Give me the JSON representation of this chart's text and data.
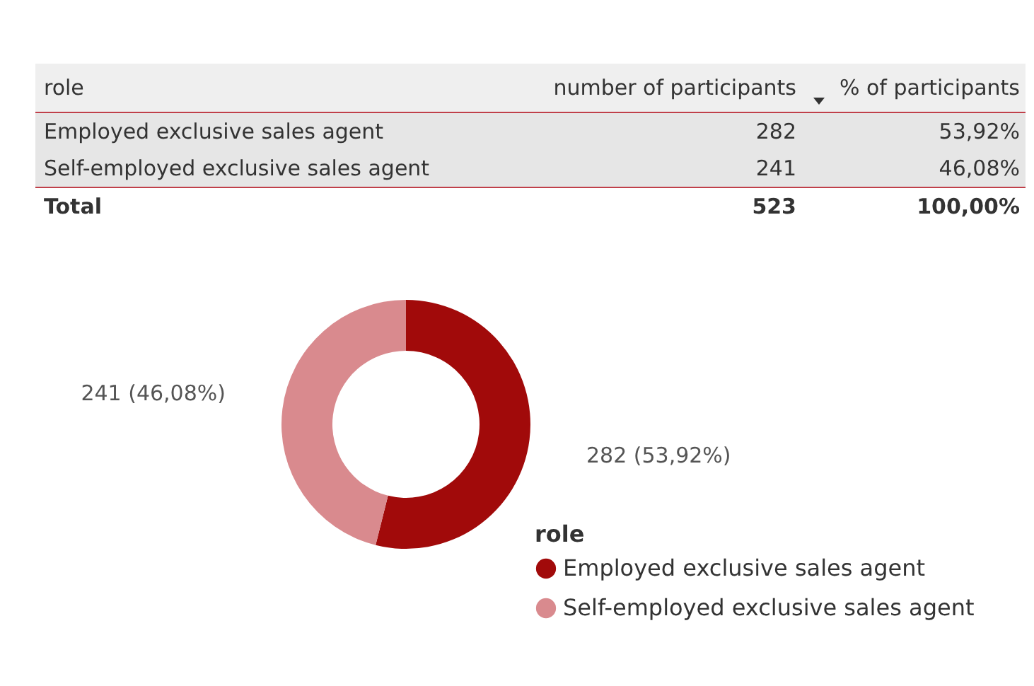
{
  "chart_data": [
    {
      "type": "other",
      "annotations": [
        "role",
        "number of participants",
        "% of participants",
        "Employed exclusive sales agent",
        "282",
        "53,92%",
        "Self-employed exclusive sales agent",
        "241",
        "46,08%",
        "Total",
        "523",
        "100,00%"
      ]
    },
    {
      "type": "donut",
      "categories": [
        "Employed exclusive sales agent",
        "Self-employed exclusive sales agent"
      ],
      "values": [
        282,
        241
      ],
      "colors": [
        "#a10a0a",
        "#d98a8e"
      ],
      "value_labels": [
        "282 (53,92%)",
        "241 (46,08%)"
      ],
      "legend_title": "role",
      "legend": "bottom right"
    }
  ]
}
